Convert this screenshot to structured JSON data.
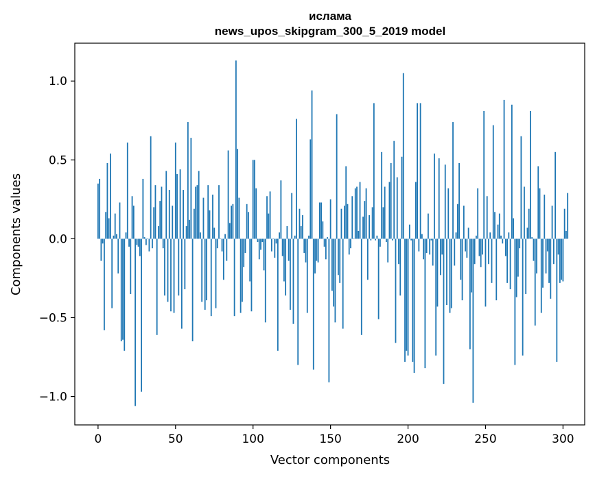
{
  "chart_data": {
    "type": "bar",
    "title": "ислама",
    "subtitle": "news_upos_skipgram_300_5_2019 model",
    "xlabel": "Vector components",
    "ylabel": "Components values",
    "xlim": [
      -15,
      314
    ],
    "ylim": [
      -1.18,
      1.24
    ],
    "xticks": [
      0,
      50,
      100,
      150,
      200,
      250,
      300
    ],
    "yticks": [
      -1.0,
      -0.5,
      0.0,
      0.5,
      1.0
    ],
    "ytick_labels": [
      "−1.0",
      "−0.5",
      "0.0",
      "0.5",
      "1.0"
    ],
    "bar_color": "#1f77b4",
    "grid": false,
    "values": [
      0.35,
      0.38,
      -0.14,
      -0.03,
      -0.58,
      0.17,
      0.48,
      0.13,
      0.54,
      -0.44,
      0.02,
      0.16,
      0.03,
      -0.22,
      0.23,
      -0.65,
      -0.64,
      -0.71,
      0.04,
      0.61,
      -0.05,
      -0.35,
      0.27,
      0.21,
      -1.06,
      -0.04,
      -0.05,
      -0.11,
      -0.97,
      0.38,
      0.01,
      -0.04,
      0.0,
      -0.08,
      0.65,
      -0.06,
      0.2,
      0.34,
      -0.61,
      0.08,
      0.24,
      0.33,
      -0.06,
      -0.36,
      0.43,
      -0.4,
      0.31,
      -0.46,
      0.21,
      -0.47,
      0.61,
      0.41,
      -0.36,
      0.44,
      -0.57,
      0.31,
      -0.32,
      0.08,
      0.74,
      0.12,
      0.64,
      -0.65,
      0.19,
      0.33,
      0.34,
      0.43,
      0.04,
      -0.4,
      0.26,
      -0.45,
      -0.39,
      0.34,
      0.18,
      -0.49,
      0.28,
      0.07,
      -0.44,
      -0.06,
      0.34,
      0.0,
      -0.08,
      -0.26,
      0.03,
      -0.14,
      0.56,
      0.1,
      0.21,
      0.22,
      -0.49,
      1.13,
      0.57,
      0.26,
      -0.47,
      -0.4,
      -0.18,
      -0.09,
      0.22,
      0.17,
      -0.27,
      -0.46,
      0.5,
      0.5,
      0.32,
      -0.02,
      -0.13,
      -0.07,
      -0.02,
      -0.2,
      -0.53,
      0.27,
      0.16,
      0.3,
      -0.08,
      0.0,
      -0.12,
      -0.03,
      -0.71,
      0.04,
      0.37,
      -0.11,
      -0.27,
      -0.36,
      0.08,
      -0.14,
      -0.45,
      0.29,
      -0.54,
      0.02,
      0.76,
      -0.8,
      0.19,
      0.08,
      0.15,
      -0.09,
      -0.15,
      -0.47,
      0.02,
      0.63,
      0.94,
      -0.83,
      -0.22,
      -0.14,
      -0.15,
      0.23,
      0.23,
      0.11,
      -0.05,
      -0.13,
      0.01,
      -0.91,
      0.25,
      -0.33,
      -0.43,
      -0.53,
      0.79,
      -0.23,
      -0.28,
      0.19,
      -0.57,
      0.21,
      0.46,
      0.22,
      -0.1,
      -0.06,
      0.27,
      0.0,
      0.32,
      0.33,
      0.05,
      0.36,
      -0.61,
      0.14,
      0.24,
      0.32,
      -0.26,
      0.15,
      -0.01,
      0.2,
      0.86,
      -0.01,
      0.02,
      -0.51,
      -0.05,
      0.55,
      0.2,
      0.33,
      -0.02,
      -0.15,
      0.36,
      0.48,
      -0.01,
      0.62,
      -0.66,
      0.39,
      -0.16,
      -0.36,
      0.52,
      1.05,
      -0.78,
      -0.71,
      -0.74,
      0.09,
      -0.01,
      -0.78,
      -0.85,
      0.36,
      0.86,
      -0.08,
      0.86,
      0.03,
      -0.13,
      -0.82,
      -0.09,
      0.16,
      -0.1,
      -0.01,
      -0.17,
      0.54,
      -0.74,
      -0.43,
      0.51,
      -0.23,
      -0.1,
      -0.92,
      0.47,
      -0.42,
      0.32,
      -0.47,
      -0.44,
      0.74,
      -0.17,
      0.04,
      0.22,
      0.48,
      -0.26,
      -0.39,
      0.21,
      -0.08,
      -0.12,
      0.07,
      -0.7,
      -0.34,
      -1.04,
      -0.16,
      0.02,
      0.32,
      -0.11,
      -0.18,
      -0.1,
      0.81,
      -0.43,
      0.27,
      -0.16,
      0.04,
      -0.28,
      0.72,
      0.17,
      -0.39,
      0.09,
      0.16,
      0.02,
      -0.03,
      0.88,
      -0.11,
      -0.28,
      0.04,
      -0.32,
      0.85,
      0.13,
      -0.8,
      -0.37,
      -0.24,
      -0.06,
      0.65,
      -0.74,
      0.33,
      -0.35,
      0.07,
      0.19,
      0.81,
      0.01,
      -0.14,
      -0.55,
      -0.22,
      0.46,
      0.32,
      -0.47,
      -0.31,
      0.28,
      -0.22,
      -0.08,
      -0.28,
      -0.38,
      0.21,
      -0.16,
      0.55,
      -0.78,
      -0.1,
      -0.28,
      -0.26,
      -0.27,
      0.19,
      0.05,
      0.29
    ]
  }
}
